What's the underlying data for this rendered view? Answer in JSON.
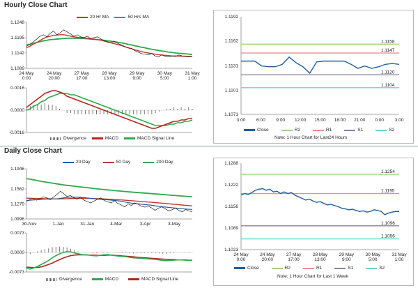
{
  "hourly": {
    "title": "Hourly Close Chart",
    "main_chart": {
      "type": "line",
      "legend": [
        "20 Hr MA",
        "50 Hrs MA"
      ],
      "colors": {
        "close": "#222222",
        "ma20": "#c0392b",
        "ma50": "#2eaa4a"
      },
      "y_ticks": [
        "1.1248",
        "1.1195",
        "1.1142",
        "1.1089"
      ],
      "ylim": [
        1.1089,
        1.1248
      ],
      "x_ticks": [
        [
          "24 May",
          "0:00"
        ],
        [
          "24 May",
          "20:00"
        ],
        [
          "27 May",
          "17:00"
        ],
        [
          "28 May",
          "13:00"
        ],
        [
          "29 May",
          "9:00"
        ],
        [
          "30 May",
          "5:00"
        ],
        [
          "31 May",
          "1:00"
        ]
      ],
      "close": [
        1.1165,
        1.1172,
        1.118,
        1.119,
        1.12,
        1.1205,
        1.1198,
        1.121,
        1.1218,
        1.1205,
        1.1212,
        1.1222,
        1.1215,
        1.1208,
        1.12,
        1.1205,
        1.1198,
        1.1195,
        1.12,
        1.1192,
        1.1195,
        1.1198,
        1.119,
        1.1185,
        1.118,
        1.1178,
        1.1182,
        1.1175,
        1.117,
        1.1165,
        1.116,
        1.1158,
        1.115,
        1.1145,
        1.114,
        1.1138,
        1.1135,
        1.114,
        1.1132,
        1.1128,
        1.1136,
        1.113,
        1.1128,
        1.1131,
        1.113,
        1.1135,
        1.1132,
        1.113,
        1.1128,
        1.113
      ],
      "ma20": [
        1.116,
        1.1165,
        1.1172,
        1.1178,
        1.1185,
        1.1192,
        1.1197,
        1.12,
        1.1203,
        1.1204,
        1.1205,
        1.1205,
        1.1203,
        1.12,
        1.1198,
        1.1196,
        1.1195,
        1.1194,
        1.1193,
        1.1191,
        1.119,
        1.1188,
        1.1186,
        1.1183,
        1.118,
        1.1177,
        1.1174,
        1.1171,
        1.1168,
        1.1164,
        1.116,
        1.1157,
        1.1153,
        1.115,
        1.1147,
        1.1144,
        1.1142,
        1.114,
        1.1138,
        1.1136,
        1.1135,
        1.1134,
        1.1133,
        1.1132,
        1.1132,
        1.1131,
        1.1131,
        1.1131,
        1.113,
        1.113
      ],
      "ma50": [
        1.117,
        1.1172,
        1.1175,
        1.1178,
        1.1181,
        1.1184,
        1.1186,
        1.1188,
        1.1189,
        1.119,
        1.1191,
        1.1192,
        1.1193,
        1.1193,
        1.1193,
        1.1193,
        1.1192,
        1.1192,
        1.1191,
        1.119,
        1.1189,
        1.1188,
        1.1187,
        1.1186,
        1.1184,
        1.1183,
        1.1181,
        1.1179,
        1.1177,
        1.1175,
        1.1172,
        1.117,
        1.1167,
        1.1165,
        1.1162,
        1.116,
        1.1157,
        1.1155,
        1.1153,
        1.1151,
        1.1149,
        1.1147,
        1.1145,
        1.1144,
        1.1142,
        1.1141,
        1.114,
        1.1139,
        1.1138,
        1.1137
      ]
    },
    "macd_chart": {
      "type": "line",
      "y_ticks": [
        "0.0016",
        "0.0000",
        "-0.0016"
      ],
      "ylim": [
        -0.0016,
        0.0016
      ],
      "legend": [
        "Divergence",
        "MACD",
        "MACD Signal Line"
      ],
      "colors": {
        "divergence": "#777777",
        "macd": "#b3261e",
        "signal": "#2eaa4a"
      },
      "macd": [
        0.0002,
        0.0004,
        0.0006,
        0.0008,
        0.001,
        0.0012,
        0.0013,
        0.0014,
        0.0014,
        0.0013,
        0.0012,
        0.001,
        0.0009,
        0.0008,
        0.0007,
        0.0006,
        0.0005,
        0.0004,
        0.0003,
        0.0002,
        0.0001,
        0.0,
        -0.0001,
        -0.0002,
        -0.0003,
        -0.0004,
        -0.0005,
        -0.0006,
        -0.0007,
        -0.0008,
        -0.0009,
        -0.001,
        -0.0011,
        -0.0012,
        -0.0013,
        -0.0013,
        -0.0012,
        -0.0011,
        -0.001,
        -0.0009,
        -0.0008,
        -0.0008,
        -0.0007,
        -0.0007,
        -0.0006,
        -0.0006
      ],
      "signal": [
        0.0,
        0.0001,
        0.0003,
        0.0004,
        0.0006,
        0.0007,
        0.0009,
        0.001,
        0.0011,
        0.0012,
        0.0012,
        0.0012,
        0.0011,
        0.0011,
        0.001,
        0.0009,
        0.0008,
        0.0007,
        0.0006,
        0.0005,
        0.0004,
        0.0003,
        0.0002,
        0.0001,
        0.0,
        -0.0001,
        -0.0002,
        -0.0003,
        -0.0004,
        -0.0005,
        -0.0006,
        -0.0007,
        -0.0008,
        -0.0009,
        -0.001,
        -0.0011,
        -0.0011,
        -0.0011,
        -0.0011,
        -0.001,
        -0.001,
        -0.0009,
        -0.0009,
        -0.0008,
        -0.0008,
        -0.0007
      ]
    },
    "right_chart": {
      "type": "line",
      "y_ticks": [
        "1.1192",
        "1.1162",
        "1.1131",
        "1.1101",
        "1.1071"
      ],
      "ylim": [
        1.1071,
        1.1192
      ],
      "x_ticks": [
        "3:00",
        "6:00",
        "9:00",
        "12:00",
        "15:00",
        "18:00",
        "21:00",
        "0:00",
        "3:00"
      ],
      "close": [
        1.1137,
        1.1137,
        1.1137,
        1.1131,
        1.113,
        1.113,
        1.1133,
        1.1142,
        1.1135,
        1.113,
        1.1122,
        1.1136,
        1.1137,
        1.1137,
        1.1137,
        1.1137,
        1.1133,
        1.1128,
        1.1131,
        1.1128,
        1.113,
        1.1133,
        1.1134,
        1.1133
      ],
      "levels": [
        {
          "name": "R2",
          "value": 1.1158,
          "label": "1.1158",
          "color": "#9bd17e"
        },
        {
          "name": "R1",
          "value": 1.1147,
          "label": "1.1147",
          "color": "#ee8f8f"
        },
        {
          "name": "S1",
          "value": 1.112,
          "label": "1.1120",
          "color": "#8a7fa6"
        },
        {
          "name": "S2",
          "value": 1.1104,
          "label": "1.1104",
          "color": "#6fcfd6"
        }
      ],
      "legend": [
        "Close",
        "R2",
        "R1",
        "S1",
        "S2"
      ],
      "close_color": "#1f5fa0",
      "note": "Note: 1 Hour Chart for Last24 Hours"
    }
  },
  "daily": {
    "title": "Daily Close Chart",
    "main_chart": {
      "type": "line",
      "legend": [
        "20 Day",
        "50 Day",
        "200 Day"
      ],
      "colors": {
        "close": "#222222",
        "ma20": "#1f5fa0",
        "ma50": "#c0392b",
        "ma200": "#2eaa4a"
      },
      "y_ticks": [
        "1.1946",
        "1.1562",
        "1.1279",
        "1.0996"
      ],
      "ylim": [
        1.0996,
        1.1946
      ],
      "x_ticks": [
        "30-Nov",
        "1-Jan",
        "31-Jan",
        "4-Mar",
        "3-Apr",
        "3-May"
      ],
      "close": [
        1.133,
        1.1365,
        1.138,
        1.135,
        1.1375,
        1.1415,
        1.1395,
        1.136,
        1.141,
        1.146,
        1.152,
        1.1475,
        1.142,
        1.144,
        1.1395,
        1.137,
        1.141,
        1.135,
        1.1325,
        1.13,
        1.1335,
        1.137,
        1.1395,
        1.1345,
        1.132,
        1.13,
        1.134,
        1.129,
        1.126,
        1.1225,
        1.128,
        1.125,
        1.13,
        1.1275,
        1.1235,
        1.122,
        1.124,
        1.1205,
        1.116,
        1.12,
        1.1225,
        1.119,
        1.115,
        1.117,
        1.12,
        1.116,
        1.113,
        1.1175,
        1.115,
        1.113
      ],
      "ma20": [
        1.1345,
        1.135,
        1.1355,
        1.136,
        1.1365,
        1.137,
        1.1372,
        1.1374,
        1.1376,
        1.1378,
        1.1385,
        1.1395,
        1.1403,
        1.1408,
        1.141,
        1.1408,
        1.1405,
        1.14,
        1.1393,
        1.1385,
        1.1378,
        1.1372,
        1.1366,
        1.1362,
        1.1358,
        1.1352,
        1.1347,
        1.134,
        1.133,
        1.1318,
        1.1305,
        1.1295,
        1.1288,
        1.1282,
        1.1275,
        1.1268,
        1.1262,
        1.1255,
        1.1245,
        1.1235,
        1.1228,
        1.1222,
        1.1215,
        1.1208,
        1.1202,
        1.1197,
        1.119,
        1.1185,
        1.118,
        1.1175
      ],
      "ma50": [
        1.139,
        1.1388,
        1.1386,
        1.1384,
        1.1382,
        1.138,
        1.1378,
        1.1377,
        1.1376,
        1.1376,
        1.1377,
        1.1378,
        1.138,
        1.1382,
        1.1384,
        1.1385,
        1.1386,
        1.1386,
        1.1385,
        1.1384,
        1.1382,
        1.138,
        1.1377,
        1.1374,
        1.1371,
        1.1368,
        1.1364,
        1.136,
        1.1356,
        1.1352,
        1.1347,
        1.1342,
        1.1337,
        1.1332,
        1.1327,
        1.1322,
        1.1317,
        1.1312,
        1.1306,
        1.13,
        1.1295,
        1.129,
        1.1284,
        1.1278,
        1.1272,
        1.1266,
        1.126,
        1.1254,
        1.1248,
        1.1242
      ],
      "ma200": [
        1.176,
        1.175,
        1.1738,
        1.1725,
        1.1712,
        1.17,
        1.169,
        1.168,
        1.167,
        1.166,
        1.165,
        1.164,
        1.1632,
        1.1625,
        1.1618,
        1.161,
        1.1602,
        1.1595,
        1.1588,
        1.158,
        1.1572,
        1.1565,
        1.1558,
        1.1552,
        1.1546,
        1.154,
        1.1534,
        1.1528,
        1.1522,
        1.1516,
        1.151,
        1.1505,
        1.15,
        1.1495,
        1.149,
        1.1485,
        1.148,
        1.1475,
        1.147,
        1.1465,
        1.146,
        1.1455,
        1.145,
        1.1445,
        1.144,
        1.1435,
        1.143,
        1.1425,
        1.142,
        1.1415
      ]
    },
    "macd_chart": {
      "type": "line",
      "y_ticks": [
        "0.0073",
        "0.0000",
        "-0.0073"
      ],
      "ylim": [
        -0.0073,
        0.0073
      ],
      "legend": [
        "Divergence",
        "MACD",
        "MACD Signal Line"
      ],
      "colors": {
        "divergence": "#777777",
        "macd": "#2eaa4a",
        "signal": "#b3261e"
      },
      "macd": [
        -0.006,
        -0.0062,
        -0.0058,
        -0.0052,
        -0.0045,
        -0.0038,
        -0.003,
        -0.002,
        -0.0012,
        -0.0005,
        0.0,
        0.0003,
        0.0002,
        -0.0002,
        -0.0005,
        -0.0008,
        -0.0009,
        -0.001,
        -0.0012,
        -0.0013,
        -0.0011,
        -0.0009,
        -0.0008,
        -0.001,
        -0.0012,
        -0.0014,
        -0.0015,
        -0.0016,
        -0.0018,
        -0.002,
        -0.0021,
        -0.0022,
        -0.0023,
        -0.0024,
        -0.0025,
        -0.0026,
        -0.0028,
        -0.003,
        -0.0031,
        -0.003,
        -0.0029,
        -0.0028,
        -0.0028,
        -0.0029,
        -0.003,
        -0.003
      ],
      "signal": [
        -0.0055,
        -0.0056,
        -0.0057,
        -0.0056,
        -0.0054,
        -0.005,
        -0.0045,
        -0.004,
        -0.0033,
        -0.0027,
        -0.0021,
        -0.0016,
        -0.0012,
        -0.001,
        -0.0009,
        -0.0009,
        -0.0009,
        -0.001,
        -0.001,
        -0.0011,
        -0.0011,
        -0.0011,
        -0.001,
        -0.001,
        -0.0011,
        -0.0012,
        -0.0013,
        -0.0014,
        -0.0015,
        -0.0016,
        -0.0018,
        -0.0019,
        -0.002,
        -0.0021,
        -0.0022,
        -0.0023,
        -0.0024,
        -0.0025,
        -0.0026,
        -0.0027,
        -0.0027,
        -0.0028,
        -0.0028,
        -0.0028,
        -0.0029,
        -0.0029
      ]
    },
    "right_chart": {
      "type": "line",
      "y_ticks": [
        "1.1288",
        "1.1222",
        "1.1156",
        "1.1089",
        "1.1023"
      ],
      "ylim": [
        1.1023,
        1.1288
      ],
      "x_ticks": [
        [
          "24 May",
          "0:00"
        ],
        [
          "24 May",
          "20:00"
        ],
        [
          "27 May",
          "17:00"
        ],
        [
          "28 May",
          "13:00"
        ],
        [
          "29 May",
          "9:00"
        ],
        [
          "30 May",
          "5:00"
        ],
        [
          "31 May",
          "1:00"
        ]
      ],
      "close": [
        1.119,
        1.1195,
        1.1192,
        1.1198,
        1.1205,
        1.1208,
        1.121,
        1.1205,
        1.1208,
        1.12,
        1.1202,
        1.1195,
        1.12,
        1.1195,
        1.1198,
        1.119,
        1.1185,
        1.118,
        1.1175,
        1.1178,
        1.1172,
        1.1168,
        1.117,
        1.1165,
        1.116,
        1.1162,
        1.1158,
        1.1155,
        1.115,
        1.1148,
        1.1145,
        1.1147,
        1.1143,
        1.114,
        1.1142,
        1.1138,
        1.114,
        1.1145,
        1.1143,
        1.114,
        1.113,
        1.1135,
        1.1138,
        1.114,
        1.114
      ],
      "levels": [
        {
          "name": "R2",
          "value": 1.1254,
          "label": "1.1254",
          "color": "#9bd17e"
        },
        {
          "name": "R1",
          "value": 1.1195,
          "label": "1.1195",
          "color": "#ee8f8f"
        },
        {
          "name": "S1",
          "value": 1.1096,
          "label": "1.1096",
          "color": "#8a7fa6"
        },
        {
          "name": "S2",
          "value": 1.1056,
          "label": "1.1056",
          "color": "#6fcfd6"
        }
      ],
      "legend": [
        "Close",
        "R2",
        "R1",
        "S1",
        "S2"
      ],
      "close_color": "#1f5fa0",
      "note": "Note: 1 Hour Chart for Last 1 Week"
    }
  }
}
